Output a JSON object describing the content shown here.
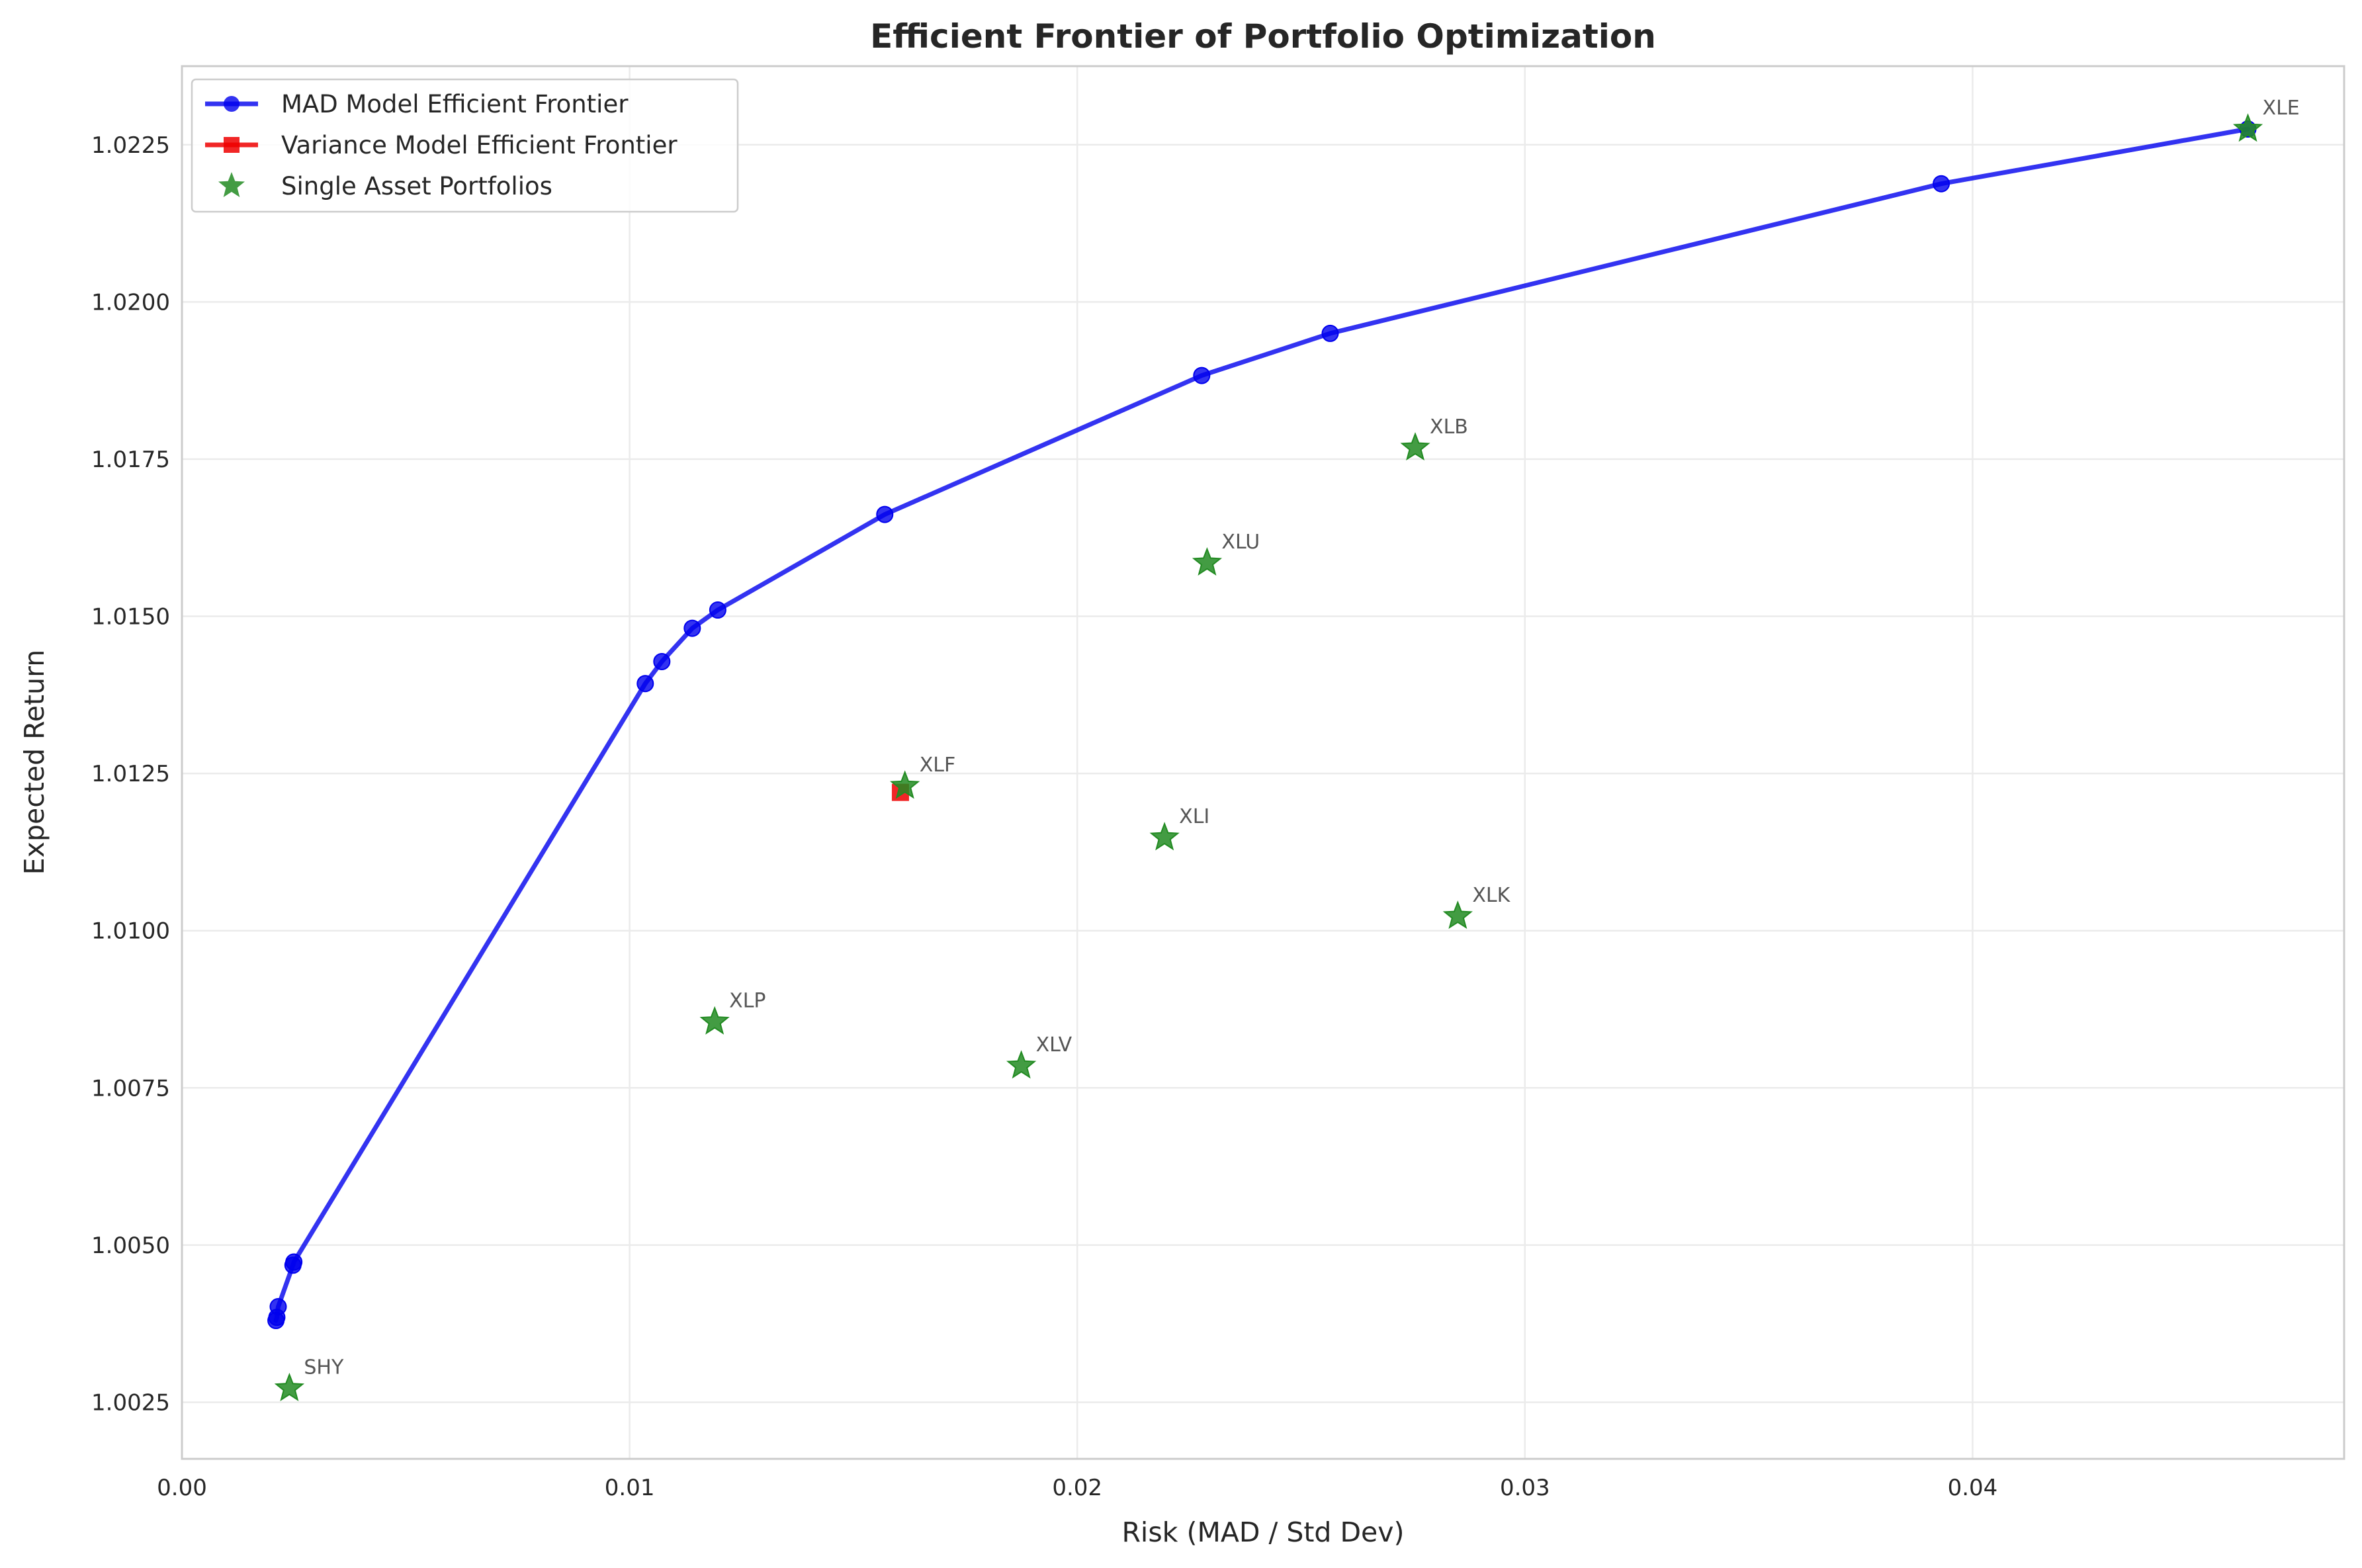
{
  "chart_data": {
    "type": "line",
    "title": "Efficient Frontier of Portfolio Optimization",
    "xlabel": "Risk (MAD / Std Dev)",
    "ylabel": "Expected Return",
    "xlim": [
      0,
      0.0483
    ],
    "ylim": [
      1.0016,
      1.02375
    ],
    "xticks": [
      0.0,
      0.01,
      0.02,
      0.03,
      0.04
    ],
    "xtick_labels": [
      "0.00",
      "0.01",
      "0.02",
      "0.03",
      "0.04"
    ],
    "yticks": [
      1.0025,
      1.005,
      1.0075,
      1.01,
      1.0125,
      1.015,
      1.0175,
      1.02,
      1.0225
    ],
    "ytick_labels": [
      "1.0025",
      "1.0050",
      "1.0075",
      "1.0100",
      "1.0125",
      "1.0150",
      "1.0175",
      "1.0200",
      "1.0225"
    ],
    "grid": true,
    "legend_position": "top-left",
    "series": [
      {
        "name": "MAD Model Efficient Frontier",
        "kind": "line-marker",
        "marker": "circle",
        "color": "#0000ee",
        "points": [
          [
            0.0021,
            1.0038
          ],
          [
            0.00212,
            1.00385
          ],
          [
            0.00215,
            1.00402
          ],
          [
            0.00248,
            1.00468
          ],
          [
            0.0025,
            1.00473
          ],
          [
            0.01035,
            1.01393
          ],
          [
            0.01072,
            1.01428
          ],
          [
            0.0114,
            1.01481
          ],
          [
            0.01197,
            1.0151
          ],
          [
            0.0157,
            1.01662
          ],
          [
            0.02278,
            1.01883
          ],
          [
            0.02565,
            1.0195
          ],
          [
            0.0393,
            1.02188
          ],
          [
            0.04615,
            1.02275
          ]
        ]
      },
      {
        "name": "Variance Model Efficient Frontier",
        "kind": "line-marker",
        "marker": "square",
        "color": "#ee0000",
        "points": [
          [
            0.01605,
            1.0122
          ]
        ]
      },
      {
        "name": "Single Asset Portfolios",
        "kind": "scatter",
        "marker": "star",
        "color": "#228b22",
        "points": [
          {
            "label": "SHY",
            "x": 0.0024,
            "y": 1.00272
          },
          {
            "label": "XLP",
            "x": 0.0119,
            "y": 1.00855
          },
          {
            "label": "XLF",
            "x": 0.01615,
            "y": 1.0123
          },
          {
            "label": "XLV",
            "x": 0.01875,
            "y": 1.00785
          },
          {
            "label": "XLI",
            "x": 0.02195,
            "y": 1.01148
          },
          {
            "label": "XLU",
            "x": 0.0229,
            "y": 1.01585
          },
          {
            "label": "XLB",
            "x": 0.02755,
            "y": 1.01768
          },
          {
            "label": "XLK",
            "x": 0.0285,
            "y": 1.01023
          },
          {
            "label": "XLE",
            "x": 0.04615,
            "y": 1.02275
          }
        ]
      }
    ]
  }
}
